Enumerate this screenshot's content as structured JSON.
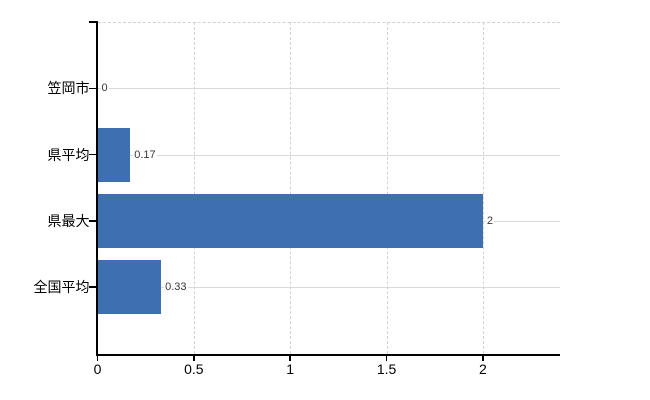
{
  "chart_data": {
    "type": "bar",
    "orientation": "horizontal",
    "title": "",
    "xlabel": "",
    "ylabel": "",
    "categories": [
      "笠岡市",
      "県平均",
      "県最大",
      "全国平均"
    ],
    "values": [
      0,
      0.17,
      2,
      0.33
    ],
    "value_labels": [
      "0",
      "0.17",
      "2",
      "0.33"
    ],
    "x_axis": {
      "range": [
        0,
        2.4
      ],
      "ticks": [
        0,
        0.5,
        1,
        1.5,
        2
      ],
      "tick_labels": [
        "0",
        "0.5",
        "1",
        "1.5",
        "2"
      ]
    },
    "legend": false,
    "grid": {
      "vertical_style": "dashed",
      "horizontal_style": "solid",
      "top_border_style": "dashed"
    },
    "colors": {
      "bar": "#3e6fae",
      "axis": "#000000",
      "grid_vertical": "#d4d0d6",
      "grid_horizontal": "#d5dcd3",
      "value_label_text": "#383838",
      "tick_label_text": "#000000",
      "background": "#ffffff"
    }
  }
}
